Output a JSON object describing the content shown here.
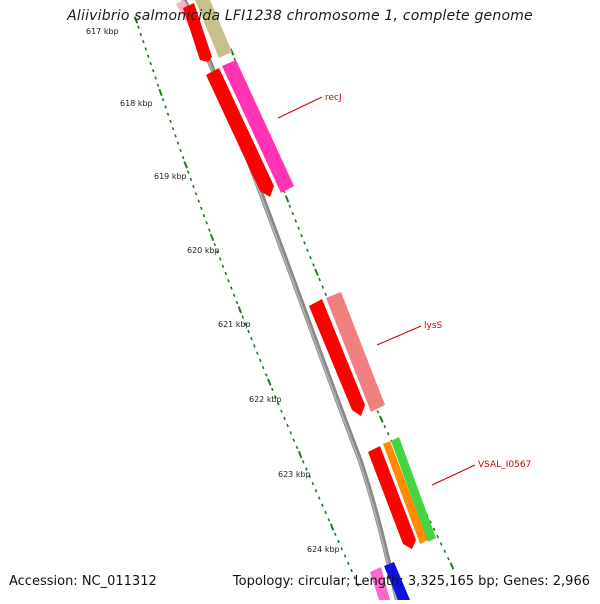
{
  "header": {
    "title": "Aliivibrio salmonicida LFI1238 chromosome 1, complete genome"
  },
  "footer": {
    "accession": "Accession: NC_011312",
    "summary": "Topology: circular; Length: 3,325,165 bp; Genes: 2,966"
  },
  "scale": {
    "ticks": [
      {
        "label": "617 kbp"
      },
      {
        "label": "618 kbp"
      },
      {
        "label": "619 kbp"
      },
      {
        "label": "620 kbp"
      },
      {
        "label": "621 kbp"
      },
      {
        "label": "622 kbp"
      },
      {
        "label": "623 kbp"
      },
      {
        "label": "624 kbp"
      }
    ]
  },
  "genes": [
    {
      "label": "recJ"
    },
    {
      "label": "lysS"
    },
    {
      "label": "VSAL_I0567"
    }
  ],
  "colors": {
    "backbone": "#8c8c8c",
    "tick": "#1e7d1e",
    "label": "#cc0000",
    "red": "#ff0000",
    "magenta": "#ff33b4",
    "salmon": "#f08080",
    "olive": "#c8c08a",
    "orange": "#ff8c00",
    "green": "#44d444",
    "blue": "#1010e0",
    "pink": "#ff66cc"
  }
}
